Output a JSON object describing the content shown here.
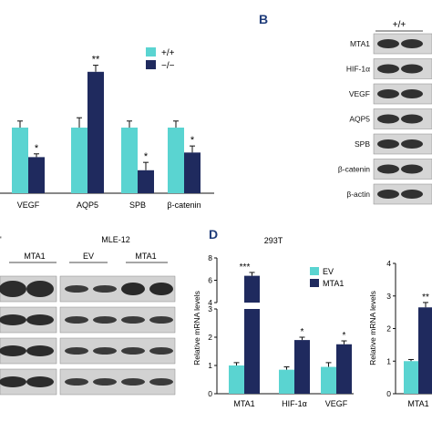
{
  "panels": {
    "b_label": "B",
    "d_label": "D"
  },
  "colors": {
    "wt": "#5ad4d1",
    "ko": "#1f2a5e",
    "ev": "#5ad4d1",
    "mta1": "#1f2a5e",
    "band": "#1a1a1a",
    "panel_letter": "#1f3c7a"
  },
  "chart_data": [
    {
      "id": "panel-a-right",
      "type": "bar",
      "categories": [
        "VEGF",
        "AQP5",
        "SPB",
        "β-catenin"
      ],
      "series": [
        {
          "name": "+/+",
          "values": [
            1.0,
            1.0,
            1.0,
            1.0
          ],
          "errors": [
            0.1,
            0.15,
            0.1,
            0.1
          ]
        },
        {
          "name": "−/−",
          "values": [
            0.55,
            1.85,
            0.35,
            0.62
          ],
          "errors": [
            0.05,
            0.1,
            0.12,
            0.1
          ]
        }
      ],
      "significance": [
        "*",
        "**",
        "*",
        "*"
      ],
      "ymax": 2.3,
      "legend_position": "top-right"
    },
    {
      "id": "panel-d-293t",
      "type": "bar",
      "title": "293T",
      "ylabel": "Relative mRNA levels",
      "categories": [
        "MTA1",
        "HIF-1α",
        "VEGF"
      ],
      "series": [
        {
          "name": "EV",
          "values": [
            1.0,
            0.85,
            0.95
          ],
          "errors": [
            0.1,
            0.1,
            0.15
          ]
        },
        {
          "name": "MTA1",
          "values": [
            6.4,
            1.9,
            1.75
          ],
          "errors": [
            0.3,
            0.1,
            0.12
          ]
        }
      ],
      "significance": [
        "***",
        "*",
        "*"
      ],
      "y_axis_break": [
        3,
        4
      ],
      "yticks_lower": [
        0,
        1,
        2,
        3
      ],
      "yticks_upper": [
        4,
        6,
        8
      ],
      "legend_position": "top-right"
    },
    {
      "id": "panel-d-right",
      "type": "bar",
      "ylabel": "Relative mRNA levels",
      "categories": [
        "MTA1"
      ],
      "series": [
        {
          "name": "EV",
          "values": [
            1.0
          ],
          "errors": [
            0.05
          ]
        },
        {
          "name": "MTA1",
          "values": [
            2.65
          ],
          "errors": [
            0.15
          ]
        }
      ],
      "significance": [
        "**"
      ],
      "yticks": [
        0,
        1,
        2,
        3,
        4
      ],
      "ylim": [
        0,
        4
      ]
    }
  ],
  "blot_b": {
    "header": "+/+",
    "rows": [
      "MTA1",
      "HIF-1α",
      "VEGF",
      "AQP5",
      "SPB",
      "β-catenin",
      "β-actin"
    ]
  },
  "blot_c": {
    "cell_line": "MLE-12",
    "left_header": "MTA1",
    "groups": [
      "EV",
      "MTA1"
    ]
  },
  "axis_d": {
    "ylabel": "Relative mRNA levels"
  }
}
